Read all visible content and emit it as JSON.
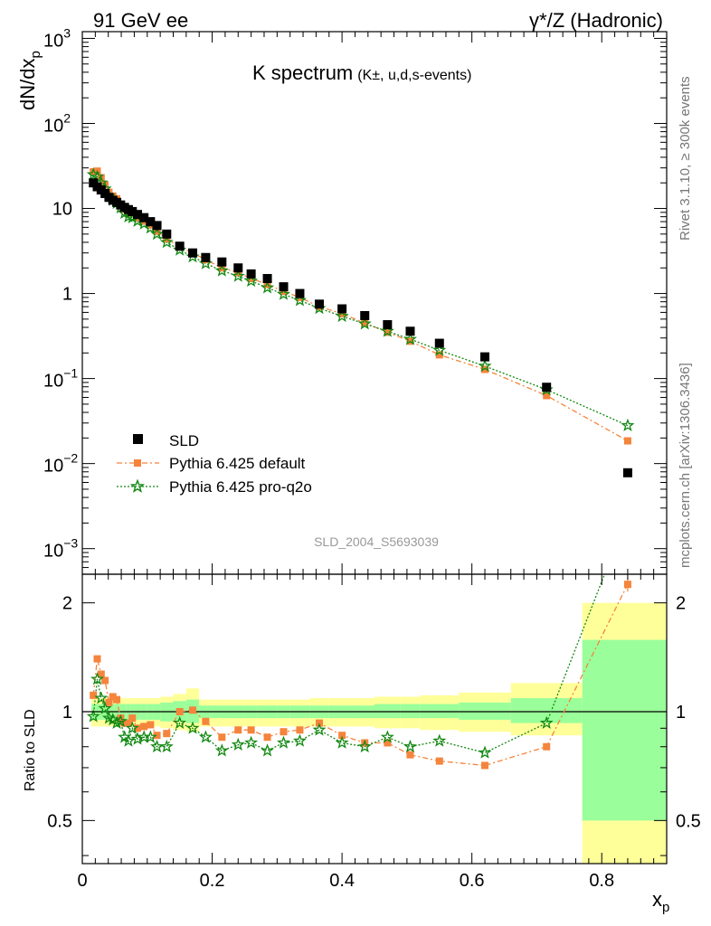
{
  "header": {
    "left": "91 GeV ee",
    "right_prefix": "γ*/Z",
    "right_suffix": "(Hadronic)"
  },
  "side_text": {
    "upper": "Rivet 3.1.10, ≥ 300k events",
    "lower": "mcplots.cern.ch [arXiv:1306.3436]"
  },
  "chart_data": {
    "type": "scatter",
    "title_main": "K spectrum",
    "title_sub": "(K±, u,d,s-events)",
    "analysis_id": "SLD_2004_S5693039",
    "xlabel_main": "x",
    "xlabel_sub": "p",
    "ylabel_main": "dN/dx",
    "ylabel_sub": "p",
    "ratio_ylabel": "Ratio to SLD",
    "xlim": [
      0,
      0.9
    ],
    "ylim": [
      0.0005,
      1200
    ],
    "yscale": "log",
    "ratio_ylim": [
      0.38,
      2.4
    ],
    "ratio_yscale": "log",
    "x_ticks": [
      "0",
      "0.2",
      "0.4",
      "0.6",
      "0.8"
    ],
    "y_ticks_plain": [
      "1",
      "10"
    ],
    "y_ticks_exp": [
      {
        "base": "10",
        "exp": "−3",
        "value": 0.001
      },
      {
        "base": "10",
        "exp": "−2",
        "value": 0.01
      },
      {
        "base": "10",
        "exp": "−1",
        "value": 0.1
      },
      {
        "base": "10",
        "exp": "2",
        "value": 100
      },
      {
        "base": "10",
        "exp": "3",
        "value": 1000
      }
    ],
    "ratio_ticks": [
      "0.5",
      "1",
      "2"
    ],
    "legend": {
      "position": "bottom-left",
      "entries": [
        "SLD",
        "Pythia 6.425 default",
        "Pythia 6.425 pro-q2o"
      ]
    },
    "colors": {
      "data": "#000000",
      "default": "#f5843c",
      "proq2o": "#118811",
      "band_inner": "#9aff9a",
      "band_outer": "#ffff9a"
    },
    "bins": [
      {
        "x0": 0.014,
        "x1": 0.02,
        "data": 20,
        "ratio": [
          1.11,
          0.97
        ],
        "band": [
          [
            0.95,
            1.05
          ],
          [
            0.91,
            1.09
          ]
        ]
      },
      {
        "x0": 0.02,
        "x1": 0.026,
        "data": 18,
        "ratio": [
          1.4,
          1.23
        ],
        "band": [
          [
            0.95,
            1.05
          ],
          [
            0.91,
            1.09
          ]
        ]
      },
      {
        "x0": 0.026,
        "x1": 0.032,
        "data": 16.5,
        "ratio": [
          1.27,
          1.09
        ],
        "band": [
          [
            0.95,
            1.05
          ],
          [
            0.91,
            1.09
          ]
        ]
      },
      {
        "x0": 0.032,
        "x1": 0.038,
        "data": 15,
        "ratio": [
          1.22,
          1.02
        ],
        "band": [
          [
            0.95,
            1.05
          ],
          [
            0.91,
            1.09
          ]
        ]
      },
      {
        "x0": 0.038,
        "x1": 0.044,
        "data": 13.5,
        "ratio": [
          1.06,
          0.96
        ],
        "band": [
          [
            0.95,
            1.05
          ],
          [
            0.91,
            1.09
          ]
        ]
      },
      {
        "x0": 0.044,
        "x1": 0.05,
        "data": 12.5,
        "ratio": [
          1.1,
          0.95
        ],
        "band": [
          [
            0.95,
            1.05
          ],
          [
            0.91,
            1.09
          ]
        ]
      },
      {
        "x0": 0.05,
        "x1": 0.056,
        "data": 11.8,
        "ratio": [
          1.08,
          0.93
        ],
        "band": [
          [
            0.95,
            1.05
          ],
          [
            0.91,
            1.09
          ]
        ]
      },
      {
        "x0": 0.056,
        "x1": 0.062,
        "data": 11,
        "ratio": [
          0.96,
          0.94
        ],
        "band": [
          [
            0.95,
            1.05
          ],
          [
            0.91,
            1.09
          ]
        ]
      },
      {
        "x0": 0.062,
        "x1": 0.068,
        "data": 10.3,
        "ratio": [
          0.93,
          0.85
        ],
        "band": [
          [
            0.95,
            1.05
          ],
          [
            0.91,
            1.09
          ]
        ]
      },
      {
        "x0": 0.068,
        "x1": 0.074,
        "data": 9.7,
        "ratio": [
          0.93,
          0.83
        ],
        "band": [
          [
            0.95,
            1.05
          ],
          [
            0.91,
            1.09
          ]
        ]
      },
      {
        "x0": 0.074,
        "x1": 0.08,
        "data": 9.2,
        "ratio": [
          0.96,
          0.9
        ],
        "band": [
          [
            0.95,
            1.05
          ],
          [
            0.91,
            1.09
          ]
        ]
      },
      {
        "x0": 0.08,
        "x1": 0.09,
        "data": 8.5,
        "ratio": [
          0.9,
          0.84
        ],
        "band": [
          [
            0.95,
            1.05
          ],
          [
            0.91,
            1.09
          ]
        ]
      },
      {
        "x0": 0.09,
        "x1": 0.1,
        "data": 7.8,
        "ratio": [
          0.91,
          0.85
        ],
        "band": [
          [
            0.95,
            1.05
          ],
          [
            0.91,
            1.09
          ]
        ]
      },
      {
        "x0": 0.1,
        "x1": 0.11,
        "data": 7.0,
        "ratio": [
          0.92,
          0.85
        ],
        "band": [
          [
            0.95,
            1.05
          ],
          [
            0.91,
            1.09
          ]
        ]
      },
      {
        "x0": 0.11,
        "x1": 0.12,
        "data": 6.3,
        "ratio": [
          0.86,
          0.8
        ],
        "band": [
          [
            0.95,
            1.05
          ],
          [
            0.91,
            1.09
          ]
        ]
      },
      {
        "x0": 0.12,
        "x1": 0.14,
        "data": 5.0,
        "ratio": [
          0.87,
          0.8
        ],
        "band": [
          [
            0.94,
            1.06
          ],
          [
            0.9,
            1.1
          ]
        ]
      },
      {
        "x0": 0.14,
        "x1": 0.16,
        "data": 3.6,
        "ratio": [
          1.0,
          0.93
        ],
        "band": [
          [
            0.94,
            1.07
          ],
          [
            0.89,
            1.12
          ]
        ]
      },
      {
        "x0": 0.16,
        "x1": 0.18,
        "data": 3.0,
        "ratio": [
          1.01,
          0.9
        ],
        "band": [
          [
            0.93,
            1.08
          ],
          [
            0.88,
            1.16
          ]
        ]
      },
      {
        "x0": 0.18,
        "x1": 0.2,
        "data": 2.65,
        "ratio": [
          0.94,
          0.85
        ],
        "band": [
          [
            0.96,
            1.04
          ],
          [
            0.91,
            1.08
          ]
        ]
      },
      {
        "x0": 0.2,
        "x1": 0.23,
        "data": 2.35,
        "ratio": [
          0.85,
          0.78
        ],
        "band": [
          [
            0.96,
            1.04
          ],
          [
            0.91,
            1.08
          ]
        ]
      },
      {
        "x0": 0.23,
        "x1": 0.25,
        "data": 2.0,
        "ratio": [
          0.89,
          0.81
        ],
        "band": [
          [
            0.96,
            1.04
          ],
          [
            0.91,
            1.08
          ]
        ]
      },
      {
        "x0": 0.25,
        "x1": 0.27,
        "data": 1.7,
        "ratio": [
          0.89,
          0.82
        ],
        "band": [
          [
            0.96,
            1.04
          ],
          [
            0.91,
            1.08
          ]
        ]
      },
      {
        "x0": 0.27,
        "x1": 0.3,
        "data": 1.5,
        "ratio": [
          0.85,
          0.78
        ],
        "band": [
          [
            0.96,
            1.04
          ],
          [
            0.91,
            1.08
          ]
        ]
      },
      {
        "x0": 0.3,
        "x1": 0.32,
        "data": 1.2,
        "ratio": [
          0.88,
          0.82
        ],
        "band": [
          [
            0.96,
            1.04
          ],
          [
            0.91,
            1.08
          ]
        ]
      },
      {
        "x0": 0.32,
        "x1": 0.35,
        "data": 1.0,
        "ratio": [
          0.89,
          0.83
        ],
        "band": [
          [
            0.96,
            1.04
          ],
          [
            0.91,
            1.08
          ]
        ]
      },
      {
        "x0": 0.35,
        "x1": 0.38,
        "data": 0.75,
        "ratio": [
          0.93,
          0.89
        ],
        "band": [
          [
            0.96,
            1.04
          ],
          [
            0.91,
            1.09
          ]
        ]
      },
      {
        "x0": 0.38,
        "x1": 0.42,
        "data": 0.66,
        "ratio": [
          0.86,
          0.82
        ],
        "band": [
          [
            0.96,
            1.04
          ],
          [
            0.91,
            1.09
          ]
        ]
      },
      {
        "x0": 0.42,
        "x1": 0.45,
        "data": 0.55,
        "ratio": [
          0.82,
          0.8
        ],
        "band": [
          [
            0.96,
            1.04
          ],
          [
            0.91,
            1.09
          ]
        ]
      },
      {
        "x0": 0.45,
        "x1": 0.49,
        "data": 0.43,
        "ratio": [
          0.82,
          0.85
        ],
        "band": [
          [
            0.96,
            1.05
          ],
          [
            0.9,
            1.1
          ]
        ]
      },
      {
        "x0": 0.49,
        "x1": 0.52,
        "data": 0.36,
        "ratio": [
          0.76,
          0.8
        ],
        "band": [
          [
            0.96,
            1.05
          ],
          [
            0.9,
            1.1
          ]
        ]
      },
      {
        "x0": 0.52,
        "x1": 0.58,
        "data": 0.26,
        "ratio": [
          0.73,
          0.83
        ],
        "band": [
          [
            0.96,
            1.05
          ],
          [
            0.89,
            1.11
          ]
        ]
      },
      {
        "x0": 0.58,
        "x1": 0.66,
        "data": 0.18,
        "ratio": [
          0.71,
          0.77
        ],
        "band": [
          [
            0.95,
            1.06
          ],
          [
            0.88,
            1.13
          ]
        ]
      },
      {
        "x0": 0.66,
        "x1": 0.77,
        "data": 0.079,
        "ratio": [
          0.8,
          0.93
        ],
        "band": [
          [
            0.93,
            1.09
          ],
          [
            0.86,
            1.2
          ]
        ]
      },
      {
        "x0": 0.77,
        "x1": 0.905,
        "data": 0.0078,
        "ratio": [
          2.25,
          3.5
        ],
        "band": [
          [
            0.5,
            1.58
          ],
          [
            0.38,
            2.0
          ]
        ]
      }
    ],
    "series": [
      {
        "name": "SLD",
        "marker": "square",
        "points": [
          [
            0.017,
            20
          ],
          [
            0.023,
            18
          ],
          [
            0.029,
            16.5
          ],
          [
            0.035,
            15
          ],
          [
            0.041,
            13.5
          ],
          [
            0.047,
            12.5
          ],
          [
            0.053,
            11.8
          ],
          [
            0.059,
            11
          ],
          [
            0.065,
            10.3
          ],
          [
            0.071,
            9.7
          ],
          [
            0.077,
            9.2
          ],
          [
            0.085,
            8.5
          ],
          [
            0.095,
            7.8
          ],
          [
            0.105,
            7.0
          ],
          [
            0.115,
            6.3
          ],
          [
            0.13,
            5.0
          ],
          [
            0.15,
            3.6
          ],
          [
            0.17,
            3.0
          ],
          [
            0.19,
            2.65
          ],
          [
            0.215,
            2.35
          ],
          [
            0.24,
            2.0
          ],
          [
            0.26,
            1.7
          ],
          [
            0.285,
            1.5
          ],
          [
            0.31,
            1.2
          ],
          [
            0.335,
            1.0
          ],
          [
            0.365,
            0.75
          ],
          [
            0.4,
            0.66
          ],
          [
            0.435,
            0.55
          ],
          [
            0.47,
            0.43
          ],
          [
            0.505,
            0.36
          ],
          [
            0.55,
            0.26
          ],
          [
            0.62,
            0.18
          ],
          [
            0.715,
            0.079
          ],
          [
            0.84,
            0.0078
          ]
        ]
      },
      {
        "name": "Pythia 6.425 default",
        "marker": "square-small",
        "points": [
          [
            0.017,
            27
          ],
          [
            0.023,
            27.5
          ],
          [
            0.029,
            23
          ],
          [
            0.035,
            19
          ],
          [
            0.041,
            15.5
          ],
          [
            0.047,
            14
          ],
          [
            0.053,
            13
          ],
          [
            0.059,
            11
          ],
          [
            0.065,
            9.8
          ],
          [
            0.071,
            9.0
          ],
          [
            0.077,
            8.8
          ],
          [
            0.085,
            7.8
          ],
          [
            0.095,
            7.1
          ],
          [
            0.105,
            6.4
          ],
          [
            0.115,
            5.4
          ],
          [
            0.13,
            4.4
          ],
          [
            0.15,
            3.55
          ],
          [
            0.17,
            3.0
          ],
          [
            0.19,
            2.5
          ],
          [
            0.215,
            2.0
          ],
          [
            0.24,
            1.77
          ],
          [
            0.26,
            1.5
          ],
          [
            0.285,
            1.28
          ],
          [
            0.31,
            1.06
          ],
          [
            0.335,
            0.9
          ],
          [
            0.365,
            0.7
          ],
          [
            0.4,
            0.58
          ],
          [
            0.435,
            0.45
          ],
          [
            0.47,
            0.35
          ],
          [
            0.505,
            0.275
          ],
          [
            0.55,
            0.19
          ],
          [
            0.62,
            0.128
          ],
          [
            0.715,
            0.063
          ],
          [
            0.84,
            0.0185
          ]
        ]
      },
      {
        "name": "Pythia 6.425 pro-q2o",
        "marker": "star",
        "points": [
          [
            0.017,
            25
          ],
          [
            0.023,
            23.5
          ],
          [
            0.029,
            20
          ],
          [
            0.035,
            17
          ],
          [
            0.041,
            14
          ],
          [
            0.047,
            12.5
          ],
          [
            0.053,
            11.5
          ],
          [
            0.059,
            10.2
          ],
          [
            0.065,
            8.8
          ],
          [
            0.071,
            8.0
          ],
          [
            0.077,
            7.8
          ],
          [
            0.085,
            7.1
          ],
          [
            0.095,
            6.6
          ],
          [
            0.105,
            5.9
          ],
          [
            0.115,
            5.0
          ],
          [
            0.13,
            4.0
          ],
          [
            0.15,
            3.25
          ],
          [
            0.17,
            2.7
          ],
          [
            0.19,
            2.25
          ],
          [
            0.215,
            1.85
          ],
          [
            0.24,
            1.6
          ],
          [
            0.26,
            1.4
          ],
          [
            0.285,
            1.17
          ],
          [
            0.31,
            0.98
          ],
          [
            0.335,
            0.83
          ],
          [
            0.365,
            0.67
          ],
          [
            0.4,
            0.54
          ],
          [
            0.435,
            0.44
          ],
          [
            0.47,
            0.36
          ],
          [
            0.505,
            0.29
          ],
          [
            0.55,
            0.215
          ],
          [
            0.62,
            0.14
          ],
          [
            0.715,
            0.074
          ],
          [
            0.84,
            0.028
          ]
        ]
      }
    ]
  }
}
